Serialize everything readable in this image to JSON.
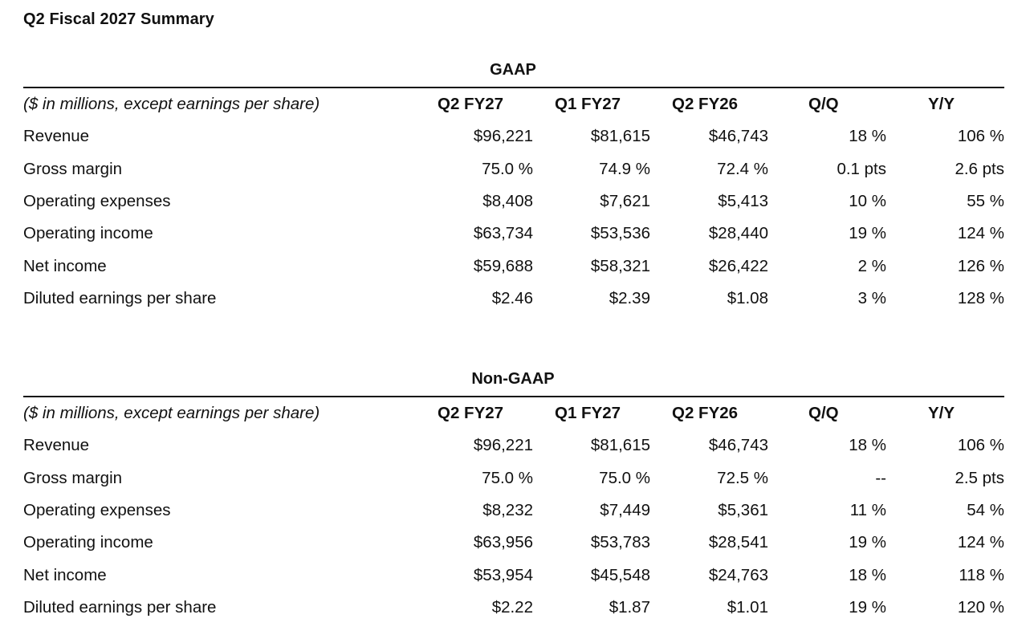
{
  "title": "Q2 Fiscal 2027 Summary",
  "header_units": "($ in millions, except earnings per share)",
  "columns": [
    "Q2 FY27",
    "Q1 FY27",
    "Q2 FY26",
    "Q/Q",
    "Y/Y"
  ],
  "gaap": {
    "title": "GAAP",
    "rows": [
      {
        "label": "Revenue",
        "values": [
          "$96,221",
          "$81,615",
          "$46,743",
          "18 %",
          "106 %"
        ]
      },
      {
        "label": "Gross margin",
        "values": [
          "75.0 %",
          "74.9 %",
          "72.4 %",
          "0.1 pts",
          "2.6 pts"
        ]
      },
      {
        "label": "Operating expenses",
        "values": [
          "$8,408",
          "$7,621",
          "$5,413",
          "10 %",
          "55 %"
        ]
      },
      {
        "label": "Operating income",
        "values": [
          "$63,734",
          "$53,536",
          "$28,440",
          "19 %",
          "124 %"
        ]
      },
      {
        "label": "Net income",
        "values": [
          "$59,688",
          "$58,321",
          "$26,422",
          "2 %",
          "126 %"
        ]
      },
      {
        "label": "Diluted earnings per share",
        "values": [
          "$2.46",
          "$2.39",
          "$1.08",
          "3 %",
          "128 %"
        ]
      }
    ]
  },
  "non_gaap": {
    "title": "Non-GAAP",
    "rows": [
      {
        "label": "Revenue",
        "values": [
          "$96,221",
          "$81,615",
          "$46,743",
          "18 %",
          "106 %"
        ]
      },
      {
        "label": "Gross margin",
        "values": [
          "75.0 %",
          "75.0 %",
          "72.5 %",
          "--",
          "2.5 pts"
        ]
      },
      {
        "label": "Operating expenses",
        "values": [
          "$8,232",
          "$7,449",
          "$5,361",
          "11 %",
          "54 %"
        ]
      },
      {
        "label": "Operating income",
        "values": [
          "$63,956",
          "$53,783",
          "$28,541",
          "19 %",
          "124 %"
        ]
      },
      {
        "label": "Net income",
        "values": [
          "$53,954",
          "$45,548",
          "$24,763",
          "18 %",
          "118 %"
        ]
      },
      {
        "label": "Diluted earnings per share",
        "values": [
          "$2.22",
          "$1.87",
          "$1.01",
          "19 %",
          "120 %"
        ]
      }
    ]
  }
}
